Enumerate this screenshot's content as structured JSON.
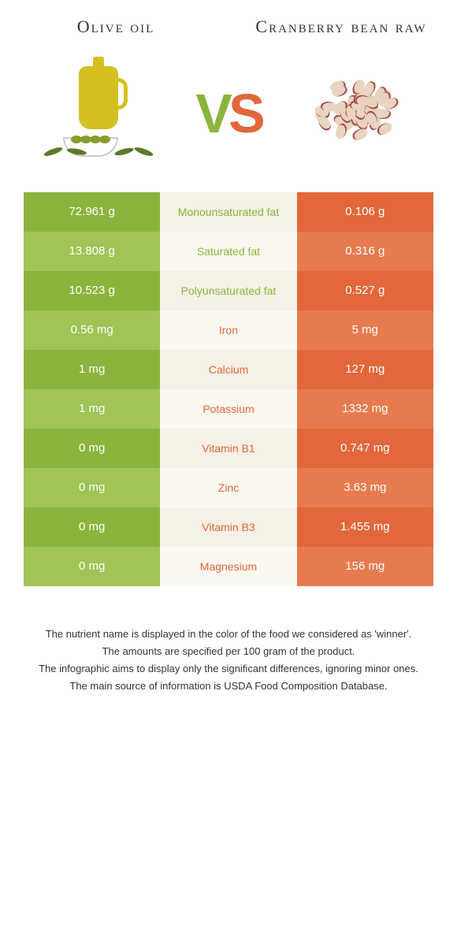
{
  "left_title": "Olive oil",
  "right_title": "Cranberry bean raw",
  "vs": {
    "v": "V",
    "s": "S"
  },
  "colors": {
    "green_dark": "#8bb43c",
    "green_light": "#a0c455",
    "orange_dark": "#e2673a",
    "orange_light": "#e77b4f",
    "mid_a": "#f5f1e6",
    "mid_b": "#fbf8f0"
  },
  "rows": [
    {
      "left": "72.961 g",
      "mid": "Monounsaturated fat",
      "right": "0.106 g",
      "winner": "left"
    },
    {
      "left": "13.808 g",
      "mid": "Saturated fat",
      "right": "0.316 g",
      "winner": "left"
    },
    {
      "left": "10.523 g",
      "mid": "Polyunsaturated fat",
      "right": "0.527 g",
      "winner": "left"
    },
    {
      "left": "0.56 mg",
      "mid": "Iron",
      "right": "5 mg",
      "winner": "right"
    },
    {
      "left": "1 mg",
      "mid": "Calcium",
      "right": "127 mg",
      "winner": "right"
    },
    {
      "left": "1 mg",
      "mid": "Potassium",
      "right": "1332 mg",
      "winner": "right"
    },
    {
      "left": "0 mg",
      "mid": "Vitamin B1",
      "right": "0.747 mg",
      "winner": "right"
    },
    {
      "left": "0 mg",
      "mid": "Zinc",
      "right": "3.63 mg",
      "winner": "right"
    },
    {
      "left": "0 mg",
      "mid": "Vitamin B3",
      "right": "1.455 mg",
      "winner": "right"
    },
    {
      "left": "0 mg",
      "mid": "Magnesium",
      "right": "156 mg",
      "winner": "right"
    }
  ],
  "footer": [
    "The nutrient name is displayed in the color of the food we considered as 'winner'.",
    "The amounts are specified per 100 gram of the product.",
    "The infographic aims to display only the significant differences, ignoring minor ones.",
    "The main source of information is USDA Food Composition Database."
  ]
}
